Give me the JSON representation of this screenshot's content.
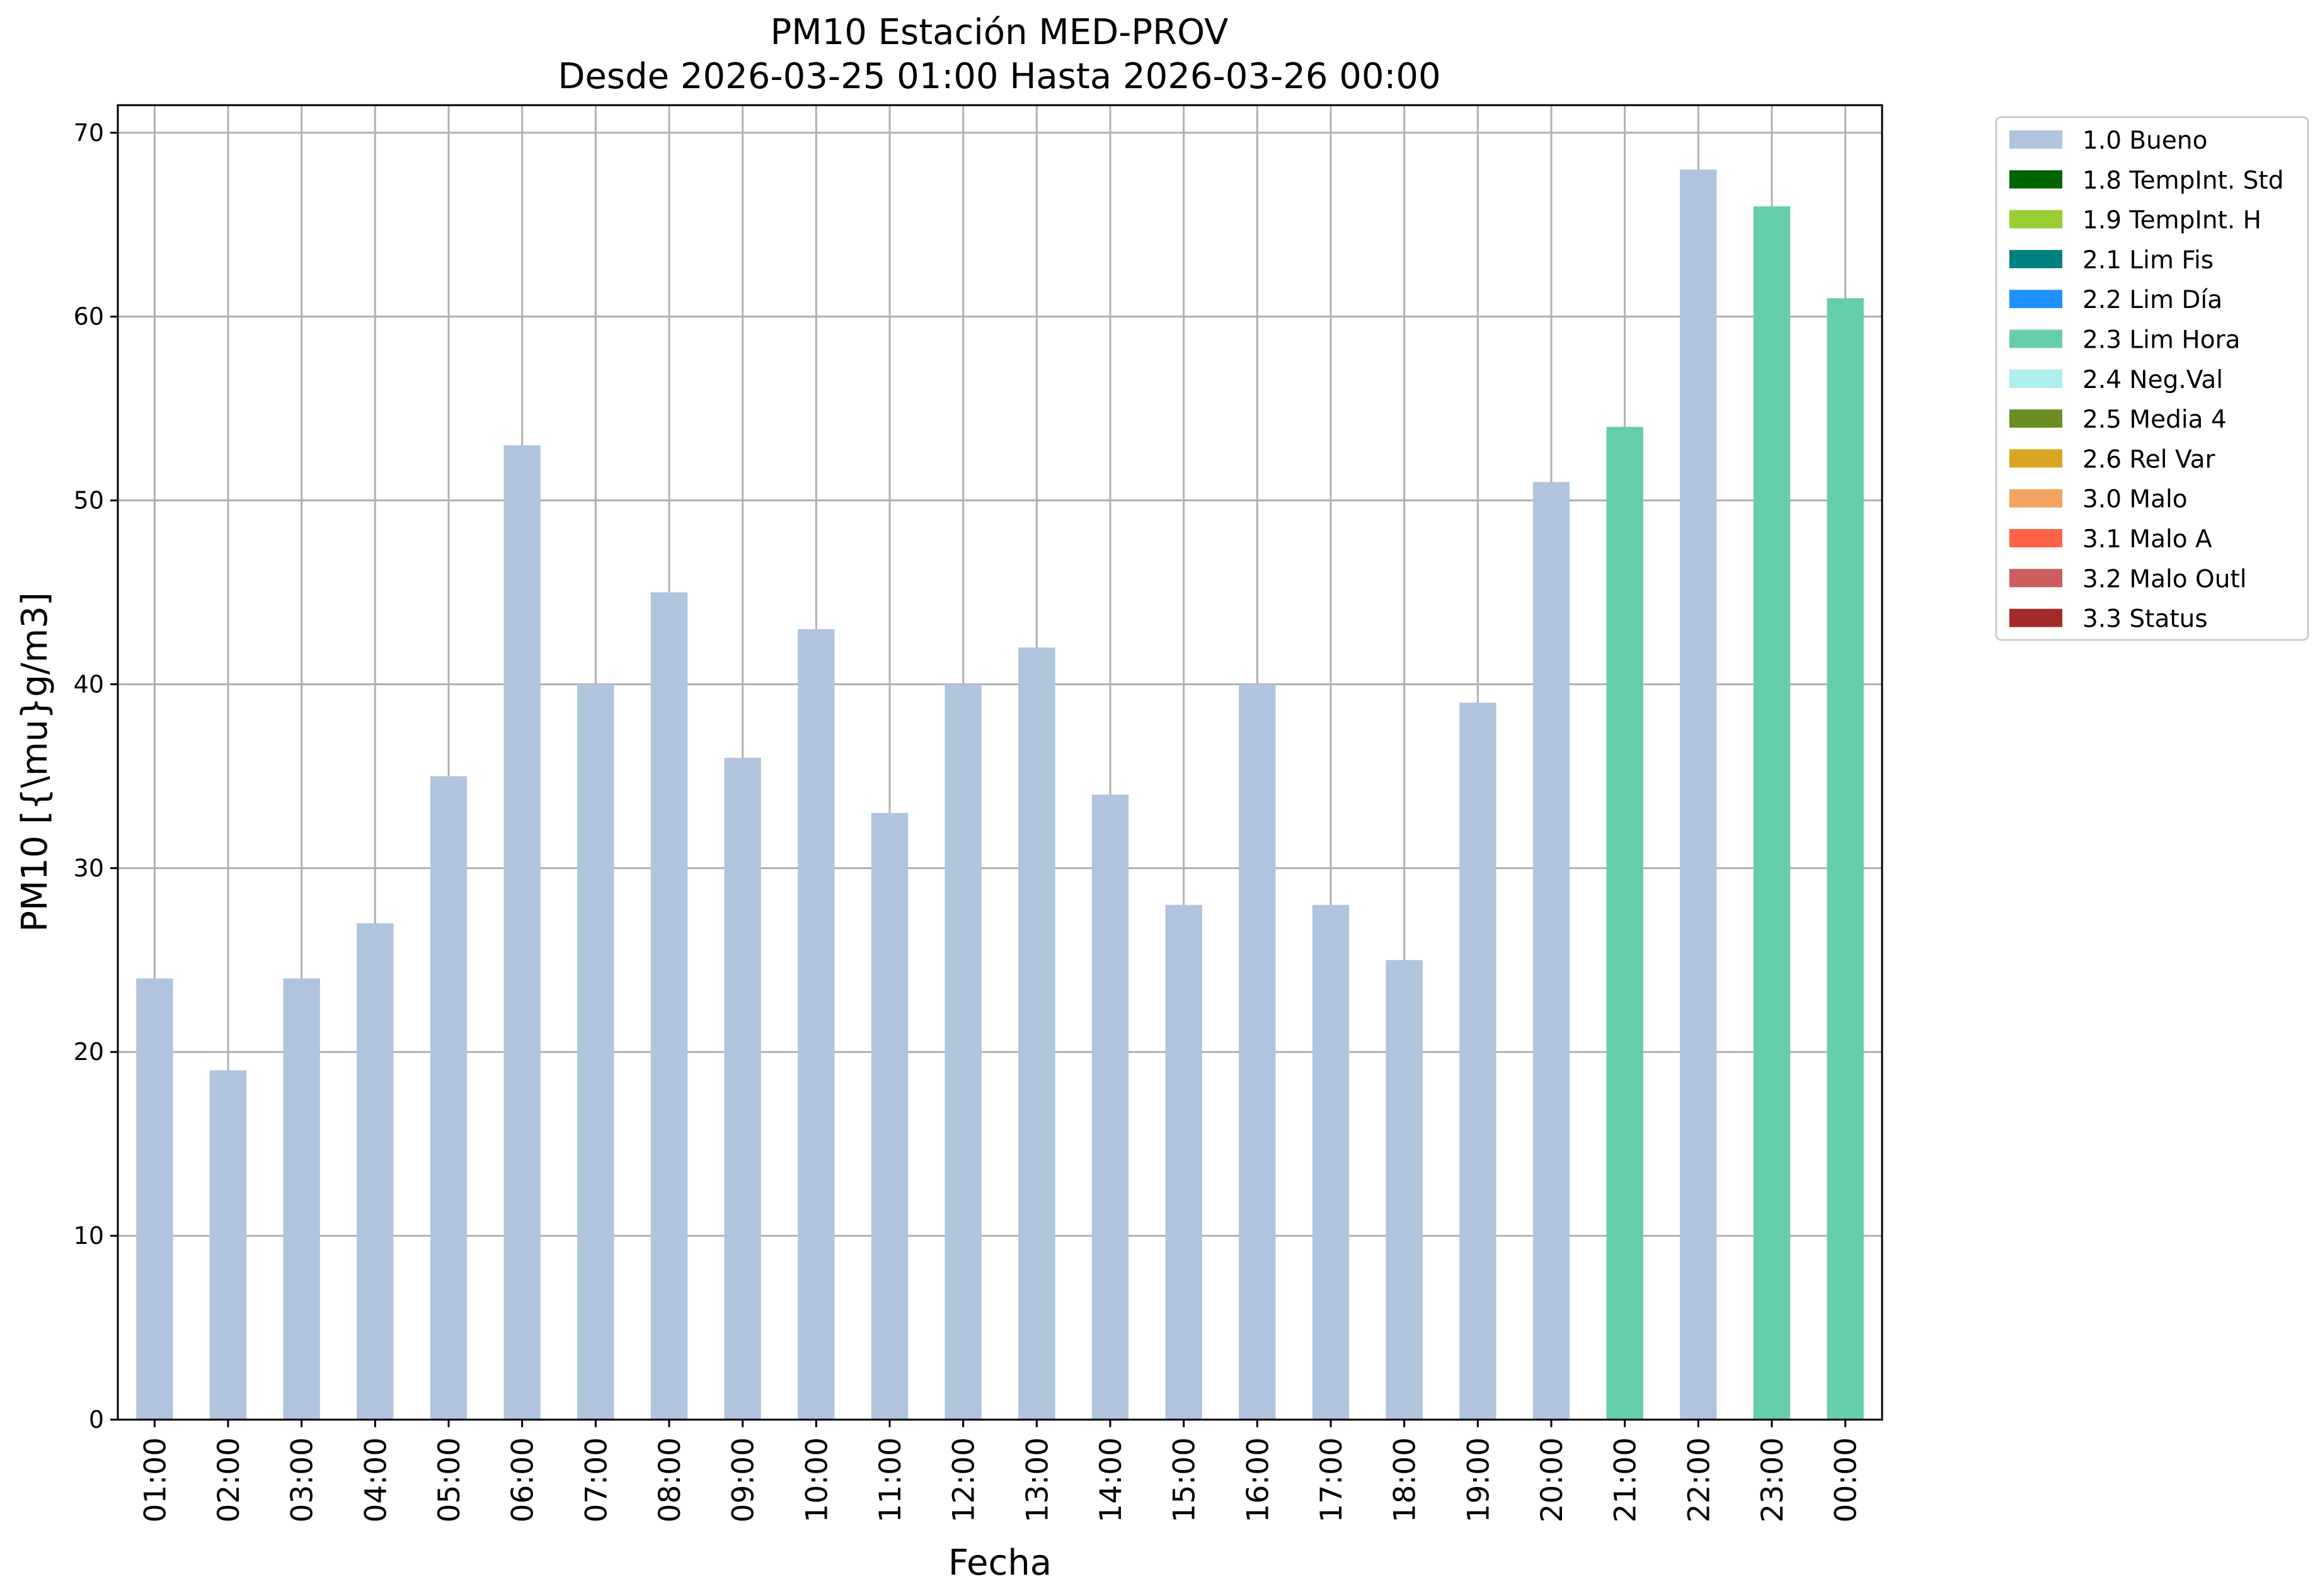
{
  "chart_data": {
    "type": "bar",
    "title": "PM10 Estación MED-PROV",
    "subtitle": "Desde 2026-03-25 01:00 Hasta 2026-03-26 00:00",
    "xlabel": "Fecha",
    "ylabel": "PM10 [{\\mu}g/m3]",
    "ylim": [
      0,
      71.5
    ],
    "yticks": [
      0,
      10,
      20,
      30,
      40,
      50,
      60,
      70
    ],
    "grid": true,
    "legend_placement": "outside top-right",
    "categories": [
      "01:00",
      "02:00",
      "03:00",
      "04:00",
      "05:00",
      "06:00",
      "07:00",
      "08:00",
      "09:00",
      "10:00",
      "11:00",
      "12:00",
      "13:00",
      "14:00",
      "15:00",
      "16:00",
      "17:00",
      "18:00",
      "19:00",
      "20:00",
      "21:00",
      "22:00",
      "23:00",
      "00:00"
    ],
    "values": [
      24,
      19,
      24,
      27,
      35,
      53,
      40,
      45,
      36,
      43,
      33,
      40,
      42,
      34,
      28,
      40,
      28,
      25,
      39,
      51,
      54,
      68,
      66,
      61
    ],
    "flags": [
      "1.0 Bueno",
      "1.0 Bueno",
      "1.0 Bueno",
      "1.0 Bueno",
      "1.0 Bueno",
      "1.0 Bueno",
      "1.0 Bueno",
      "1.0 Bueno",
      "1.0 Bueno",
      "1.0 Bueno",
      "1.0 Bueno",
      "1.0 Bueno",
      "1.0 Bueno",
      "1.0 Bueno",
      "1.0 Bueno",
      "1.0 Bueno",
      "1.0 Bueno",
      "1.0 Bueno",
      "1.0 Bueno",
      "1.0 Bueno",
      "2.3 Lim Hora",
      "1.0 Bueno",
      "2.3 Lim Hora",
      "2.3 Lim Hora"
    ],
    "legend": [
      {
        "label": "1.0 Bueno",
        "color": "#b0c4de"
      },
      {
        "label": "1.8 TempInt. Std",
        "color": "#006400"
      },
      {
        "label": "1.9 TempInt. H",
        "color": "#9acd32"
      },
      {
        "label": "2.1 Lim Fis",
        "color": "#008080"
      },
      {
        "label": "2.2 Lim Día",
        "color": "#1e90ff"
      },
      {
        "label": "2.3 Lim Hora",
        "color": "#66cdaa"
      },
      {
        "label": "2.4 Neg.Val",
        "color": "#afeeee"
      },
      {
        "label": "2.5 Media 4",
        "color": "#6b8e23"
      },
      {
        "label": "2.6 Rel Var",
        "color": "#daa520"
      },
      {
        "label": "3.0 Malo",
        "color": "#f4a460"
      },
      {
        "label": "3.1 Malo A",
        "color": "#ff6347"
      },
      {
        "label": "3.2 Malo Outl",
        "color": "#cd5c5c"
      },
      {
        "label": "3.3 Status",
        "color": "#a52a2a"
      }
    ]
  }
}
